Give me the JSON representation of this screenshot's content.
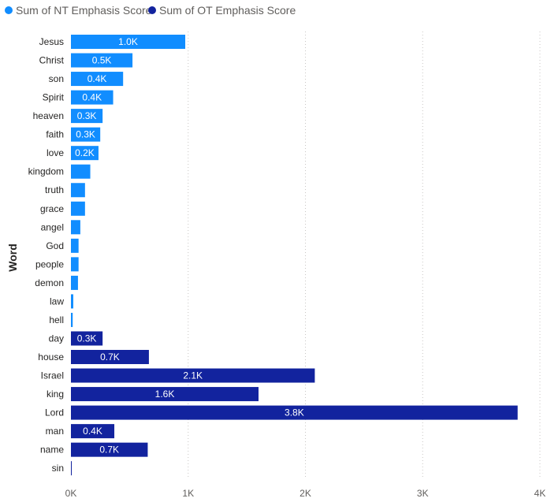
{
  "chart_data": {
    "type": "bar",
    "orientation": "horizontal",
    "ylabel": "Word",
    "xlabel": "",
    "xlim": [
      0,
      4000
    ],
    "x_ticks": [
      "0K",
      "1K",
      "2K",
      "3K",
      "4K"
    ],
    "x_tick_values": [
      0,
      1000,
      2000,
      3000,
      4000
    ],
    "grid": "vertical-dotted",
    "legend_position": "top-left",
    "series": [
      {
        "name": "Sum of NT Emphasis Score",
        "color": "#118DFF",
        "categories": [
          "Jesus",
          "Christ",
          "son",
          "Spirit",
          "heaven",
          "faith",
          "love",
          "kingdom",
          "truth",
          "grace",
          "angel",
          "God",
          "people",
          "demon",
          "law",
          "hell"
        ],
        "values": [
          975,
          525,
          445,
          360,
          270,
          250,
          235,
          165,
          120,
          120,
          80,
          65,
          65,
          60,
          20,
          15
        ],
        "labels": [
          "1.0K",
          "0.5K",
          "0.4K",
          "0.4K",
          "0.3K",
          "0.3K",
          "0.2K",
          "",
          "",
          "",
          "",
          "",
          "",
          "",
          "",
          ""
        ]
      },
      {
        "name": "Sum of OT Emphasis Score",
        "color": "#12239E",
        "categories": [
          "day",
          "house",
          "Israel",
          "king",
          "Lord",
          "man",
          "name",
          "sin"
        ],
        "values": [
          270,
          665,
          2080,
          1600,
          3810,
          370,
          655,
          5
        ],
        "labels": [
          "0.3K",
          "0.7K",
          "2.1K",
          "1.6K",
          "3.8K",
          "0.4K",
          "0.7K",
          ""
        ]
      }
    ]
  }
}
